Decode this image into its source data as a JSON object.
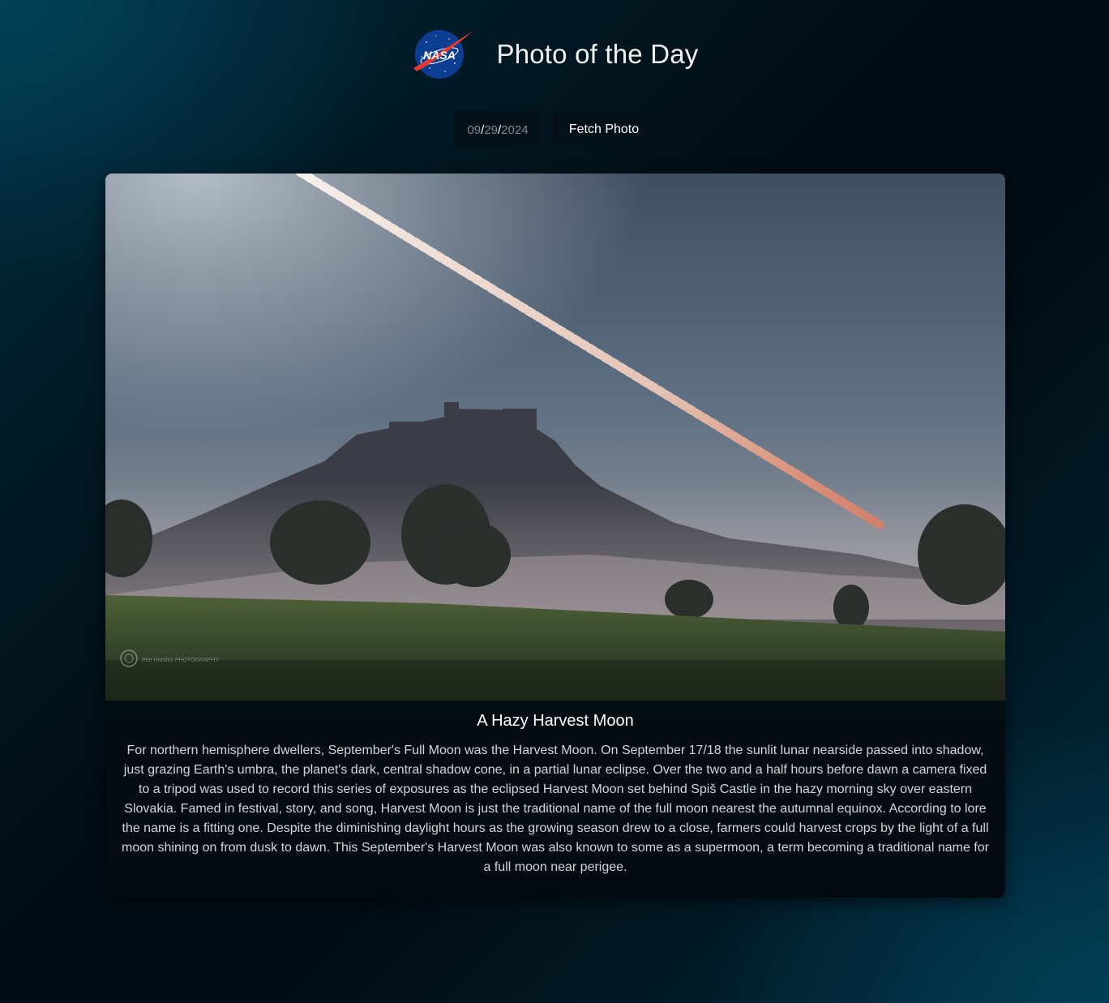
{
  "header": {
    "logo_text": "NASA",
    "logo_icon": "nasa-meatball-logo",
    "title": "Photo of the Day"
  },
  "controls": {
    "date": {
      "month": "09",
      "day": "29",
      "year": "2024",
      "separator": "/"
    },
    "fetch_label": "Fetch Photo"
  },
  "photo": {
    "title": "A Hazy Harvest Moon",
    "description": "For northern hemisphere dwellers, September's Full Moon was the Harvest Moon. On September 17/18 the sunlit lunar nearside passed into shadow, just grazing Earth's umbra, the planet's dark, central shadow cone, in a partial lunar eclipse. Over the two and a half hours before dawn a camera fixed to a tripod was used to record this series of exposures as the eclipsed Harvest Moon set behind Spiš Castle in the hazy morning sky over eastern Slovakia. Famed in festival, story, and song, Harvest Moon is just the traditional name of the full moon nearest the autumnal equinox. According to lore the name is a fitting one. Despite the diminishing daylight hours as the growing season drew to a close, farmers could harvest crops by the light of a full moon shining on from dusk to dawn. This September's Harvest Moon was also known to some as a supermoon, a term becoming a traditional name for a full moon near perigee.",
    "watermark": "Petr Horálek PHOTOGRAPHY"
  },
  "colors": {
    "background": "#021018",
    "accent": "#0b3d91",
    "nasa_red": "#e03c31"
  }
}
